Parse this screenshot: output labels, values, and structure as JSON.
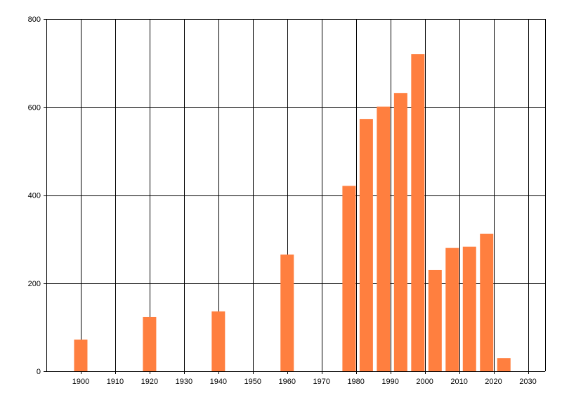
{
  "chart_data": {
    "type": "bar",
    "title": "",
    "xlabel": "",
    "ylabel": "",
    "x": [
      1900,
      1920,
      1940,
      1960,
      1978,
      1983,
      1988,
      1993,
      1998,
      2003,
      2008,
      2013,
      2018,
      2023
    ],
    "values": [
      72,
      123,
      136,
      265,
      421,
      573,
      601,
      632,
      720,
      230,
      280,
      283,
      312,
      30
    ],
    "xlim": [
      1890,
      2035
    ],
    "ylim": [
      0,
      800
    ],
    "x_ticks": [
      1900,
      1910,
      1920,
      1930,
      1940,
      1950,
      1960,
      1970,
      1980,
      1990,
      2000,
      2010,
      2020,
      2030
    ],
    "y_ticks": [
      0,
      200,
      400,
      600,
      800
    ],
    "grid": true,
    "bar_color": "#ff7f3f"
  }
}
